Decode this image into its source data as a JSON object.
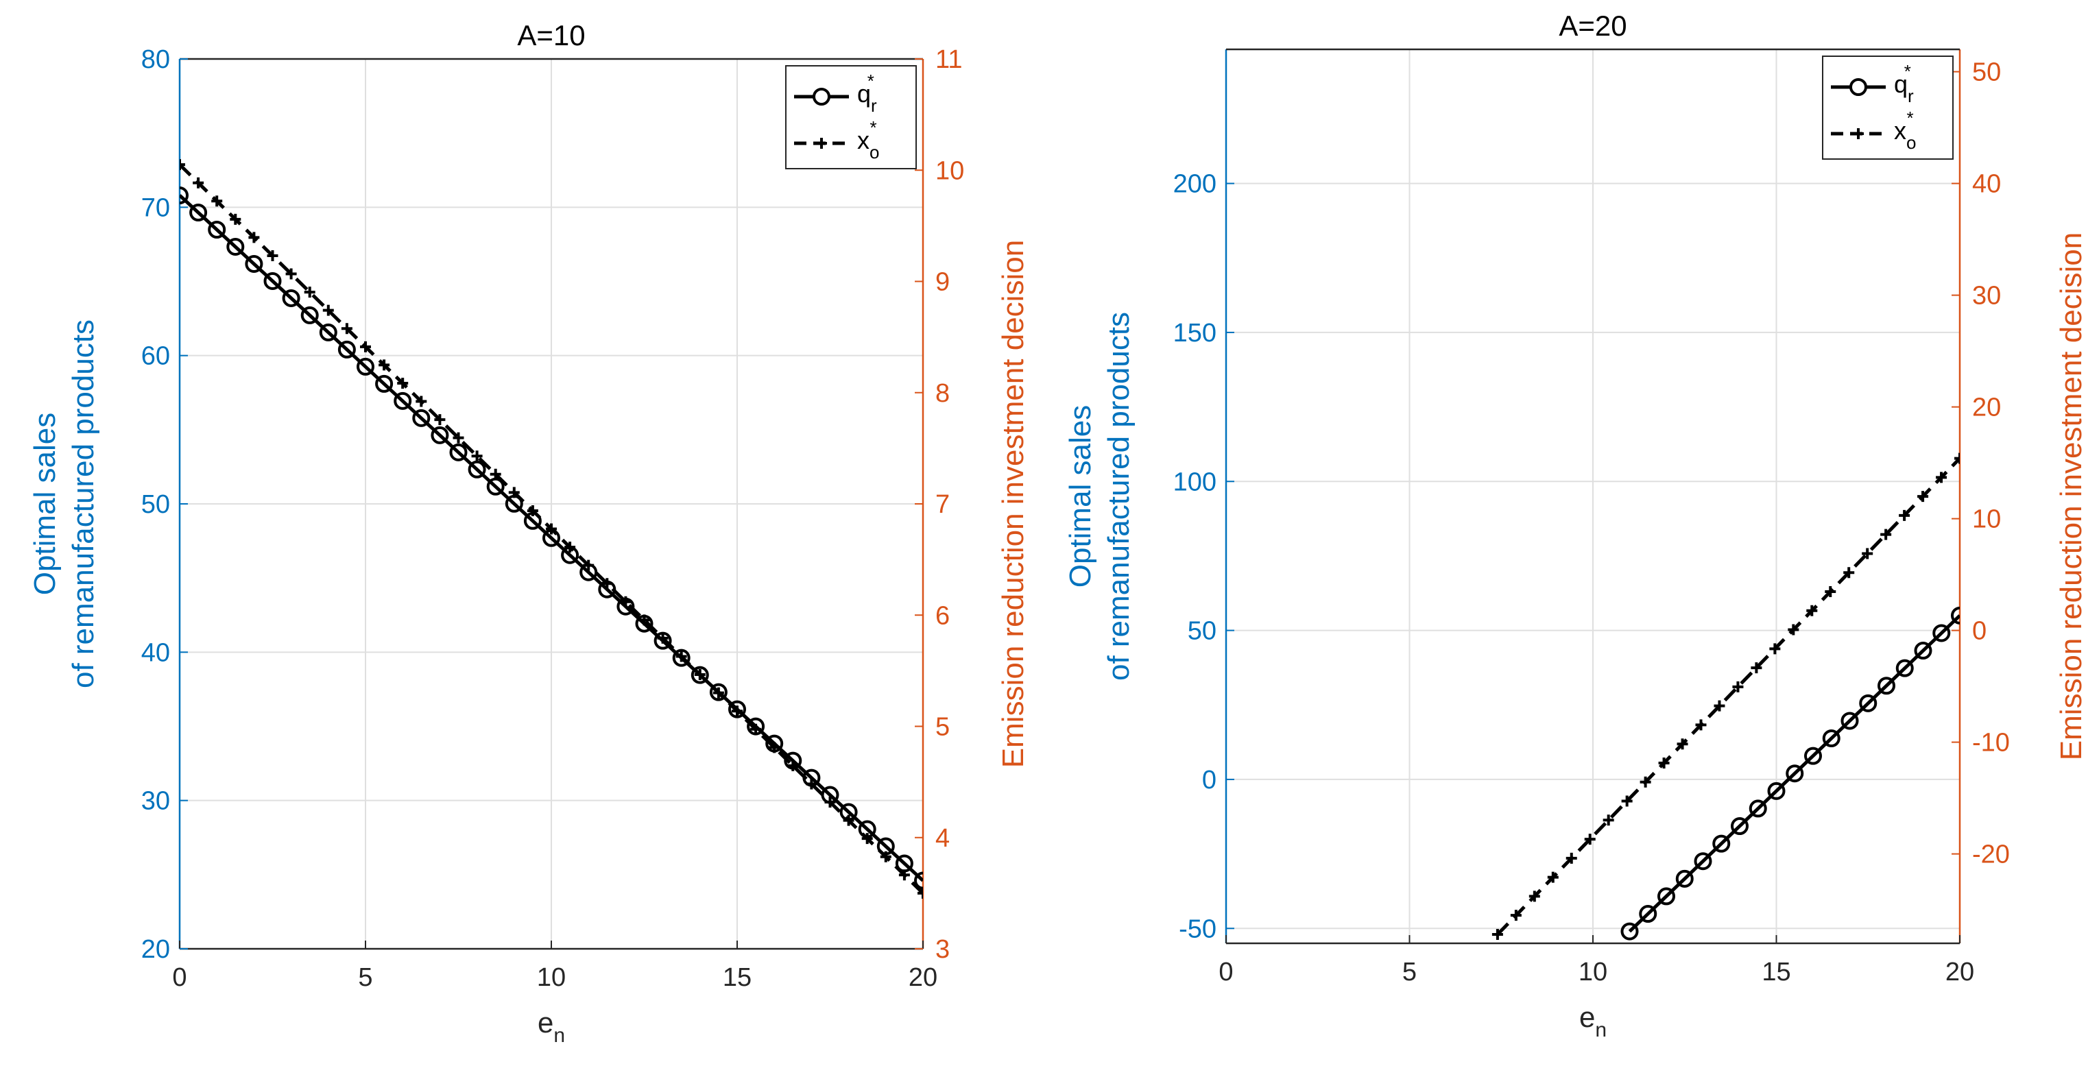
{
  "colors": {
    "left_axis": "#0072BD",
    "right_axis": "#D95319",
    "grid": "#DFDFDF",
    "series": "#000000"
  },
  "chart_data": [
    {
      "type": "line",
      "title": "A=10",
      "xlabel": "e",
      "xlabel_sub": "n",
      "ylabel_left": [
        "Optimal sales",
        "of remanufactured products"
      ],
      "ylabel_right": "Emission reduction investment decision",
      "xlim": [
        0,
        20
      ],
      "ylim_left": [
        20,
        80
      ],
      "ylim_right": [
        3,
        11
      ],
      "xticks": [
        "0",
        "5",
        "10",
        "15",
        "20"
      ],
      "yticks_left": [
        "20",
        "30",
        "40",
        "50",
        "60",
        "70",
        "80"
      ],
      "yticks_right": [
        "3",
        "4",
        "5",
        "6",
        "7",
        "8",
        "9",
        "10",
        "11"
      ],
      "grid": true,
      "legend_position": "top-right",
      "series": [
        {
          "name": "q",
          "name_sub": "r",
          "name_sup": "*",
          "axis": "left",
          "style": "solid-circle",
          "x_start": 0,
          "x_end": 20,
          "y_start": 70.8,
          "y_end": 24.6,
          "n_points": 41
        },
        {
          "name": "x",
          "name_sub": "o",
          "name_sup": "*",
          "axis": "right",
          "style": "dashed-plus",
          "x_start": 0,
          "x_end": 20,
          "y_start": 10.05,
          "y_end": 3.5,
          "n_points": 41
        }
      ]
    },
    {
      "type": "line",
      "title": "A=20",
      "xlabel": "e",
      "xlabel_sub": "n",
      "ylabel_left": [
        "Optimal sales",
        "of remanufactured products"
      ],
      "ylabel_right": "Emission reduction investment decision",
      "xlim": [
        0,
        20
      ],
      "ylim_left": [
        -55,
        245
      ],
      "ylim_right": [
        -28,
        52
      ],
      "xticks": [
        "0",
        "5",
        "10",
        "15",
        "20"
      ],
      "yticks_left": [
        "-50",
        "0",
        "50",
        "100",
        "150",
        "200"
      ],
      "yticks_right": [
        "-20",
        "-10",
        "0",
        "10",
        "20",
        "30",
        "40",
        "50"
      ],
      "grid": true,
      "legend_position": "top-right",
      "series": [
        {
          "name": "q",
          "name_sub": "r",
          "name_sup": "*",
          "axis": "left",
          "style": "solid-circle",
          "x_start": 11,
          "x_end": 20,
          "y_start": -51,
          "y_end": 55,
          "n_points": 19
        },
        {
          "name": "x",
          "name_sub": "o",
          "name_sup": "*",
          "axis": "right",
          "style": "dashed-plus",
          "x_start": 7.4,
          "x_end": 20,
          "y_start": -27.2,
          "y_end": 15.4,
          "n_points": 26
        }
      ]
    }
  ]
}
